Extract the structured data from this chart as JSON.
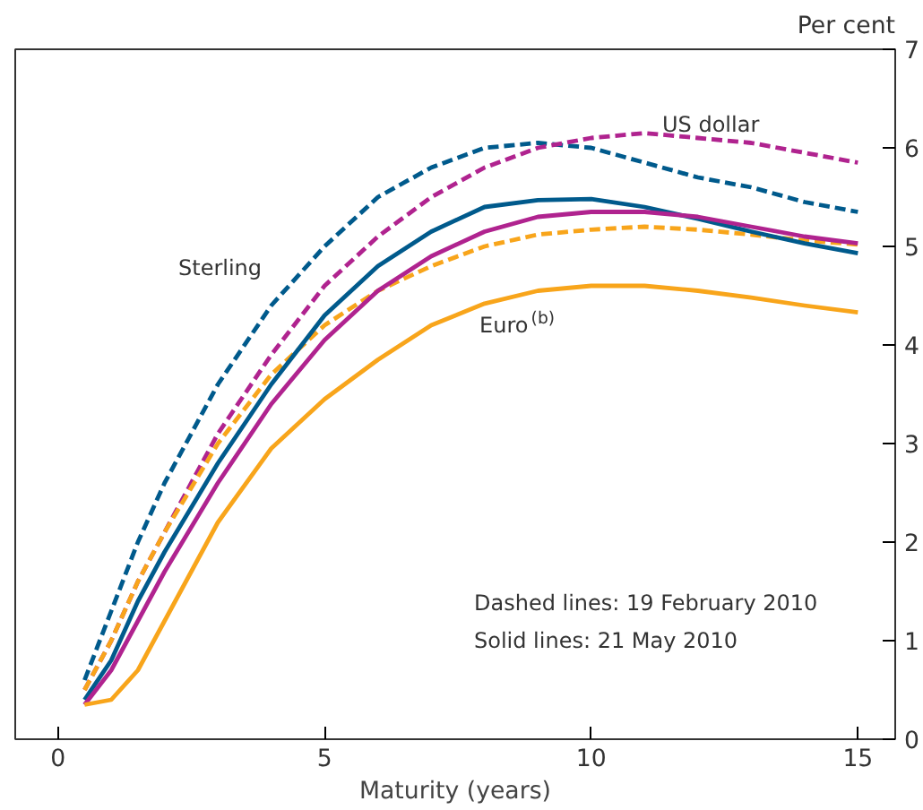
{
  "chart_data": {
    "type": "line",
    "xlabel": "Maturity (years)",
    "ylabel": "Per cent",
    "x": [
      0.5,
      1,
      1.5,
      2,
      3,
      4,
      5,
      6,
      7,
      8,
      9,
      10,
      11,
      12,
      13,
      14,
      15
    ],
    "series": [
      {
        "color": "#005a8c",
        "line_style": "dashed",
        "values": [
          0.6,
          1.3,
          2.0,
          2.6,
          3.6,
          4.4,
          5.0,
          5.5,
          5.8,
          6.0,
          6.05,
          6.0,
          5.85,
          5.7,
          5.6,
          5.45,
          5.35
        ]
      },
      {
        "color": "#b0238f",
        "line_style": "dashed",
        "values": [
          0.5,
          1.0,
          1.6,
          2.1,
          3.1,
          3.9,
          4.6,
          5.1,
          5.5,
          5.8,
          6.0,
          6.1,
          6.15,
          6.1,
          6.05,
          5.95,
          5.85
        ]
      },
      {
        "color": "#f8a51b",
        "line_style": "dashed",
        "values": [
          0.5,
          1.0,
          1.6,
          2.1,
          3.0,
          3.7,
          4.2,
          4.55,
          4.8,
          5.0,
          5.12,
          5.17,
          5.2,
          5.17,
          5.12,
          5.06,
          5.02
        ]
      },
      {
        "color": "#005a8c",
        "line_style": "solid",
        "values": [
          0.4,
          0.8,
          1.4,
          1.9,
          2.8,
          3.6,
          4.3,
          4.8,
          5.15,
          5.4,
          5.47,
          5.48,
          5.4,
          5.28,
          5.15,
          5.03,
          4.93
        ]
      },
      {
        "color": "#b0238f",
        "line_style": "solid",
        "values": [
          0.35,
          0.7,
          1.2,
          1.7,
          2.6,
          3.4,
          4.05,
          4.55,
          4.9,
          5.15,
          5.3,
          5.35,
          5.35,
          5.3,
          5.2,
          5.1,
          5.03
        ]
      },
      {
        "color": "#f8a51b",
        "line_style": "solid",
        "values": [
          0.35,
          0.4,
          0.7,
          1.2,
          2.2,
          2.95,
          3.45,
          3.85,
          4.2,
          4.42,
          4.55,
          4.6,
          4.6,
          4.55,
          4.48,
          4.4,
          4.33
        ]
      }
    ],
    "xlim": [
      -0.8,
      15.7
    ],
    "ylim": [
      0,
      7
    ],
    "xticks": [
      0,
      5,
      10,
      15
    ],
    "yticks": [
      0,
      1,
      2,
      3,
      4,
      5,
      6,
      7
    ],
    "grid": false,
    "marker": "none",
    "annotations": [
      "Sterling",
      "US dollar",
      "Euro$^{(b)}$",
      "Dashed lines:  19 February 2010",
      "Solid lines:  21 May 2010"
    ]
  }
}
